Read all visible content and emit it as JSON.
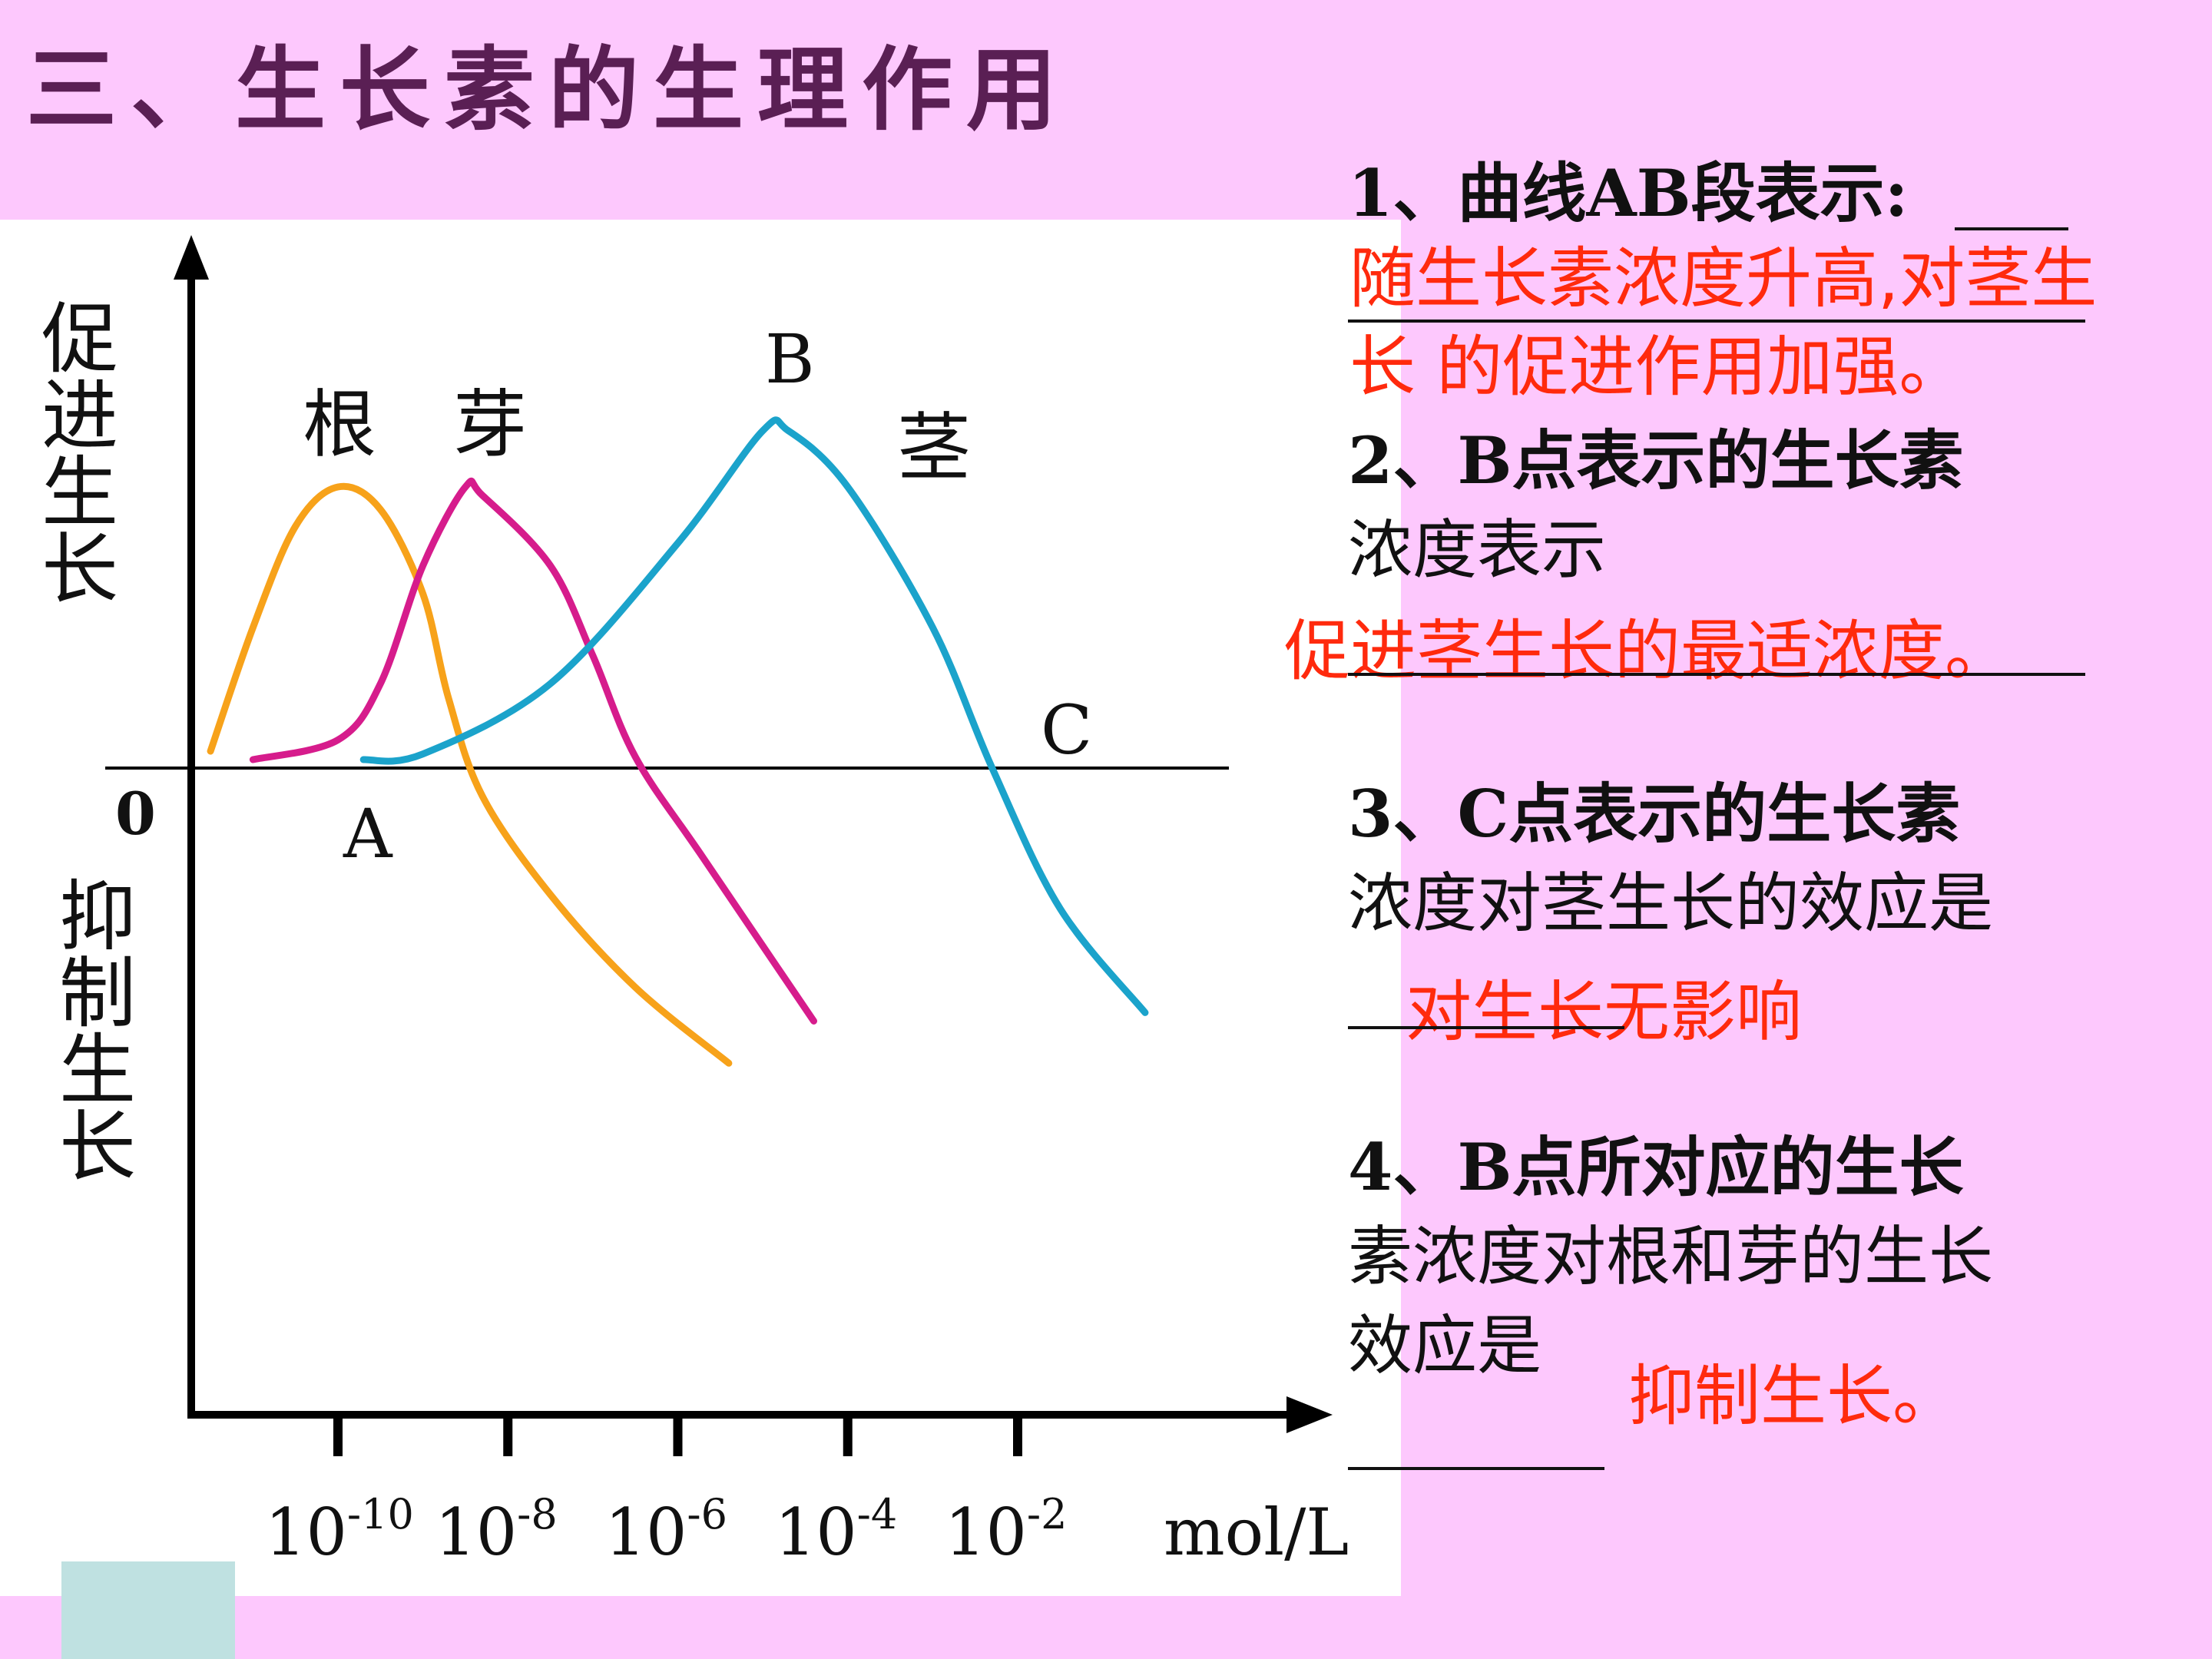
{
  "title": "三、生长素的生理作用",
  "chart_data": {
    "type": "line",
    "x_unit": "mol/L",
    "x_ticks": [
      "10",
      "10",
      "10",
      "10",
      "10"
    ],
    "x_tick_exponents": [
      "-10",
      "-8",
      "-6",
      "-4",
      "-2"
    ],
    "x_tick_values": [
      -10,
      -8,
      -6,
      -4,
      -2
    ],
    "y_label_positive": "促进生长",
    "y_label_negative": "抑制生长",
    "origin_label": "0",
    "point_labels": [
      "A",
      "B",
      "C"
    ],
    "series": [
      {
        "name": "根",
        "color": "#f7a21a",
        "x": [
          -11.5,
          -11.0,
          -10.5,
          -10.0,
          -9.5,
          -9.0,
          -8.7,
          -8.3,
          -7.5,
          -6.5,
          -5.4
        ],
        "y": [
          0.06,
          0.5,
          0.86,
          1.0,
          0.92,
          0.62,
          0.25,
          -0.1,
          -0.45,
          -0.78,
          -1.05
        ]
      },
      {
        "name": "芽",
        "color": "#d61c8c",
        "x": [
          -11.0,
          -10.0,
          -9.5,
          -9.0,
          -8.5,
          -8.3,
          -7.5,
          -7.0,
          -6.5,
          -5.7,
          -4.4
        ],
        "y": [
          0.03,
          0.1,
          0.3,
          0.72,
          1.0,
          0.97,
          0.72,
          0.4,
          0.04,
          -0.32,
          -0.9
        ]
      },
      {
        "name": "茎",
        "color": "#1ba3cb",
        "x": [
          -9.7,
          -9.0,
          -7.5,
          -6.0,
          -5.0,
          -4.7,
          -4.0,
          -3.0,
          -2.3,
          -1.5,
          -0.5
        ],
        "y": [
          0.03,
          0.05,
          0.3,
          0.8,
          1.2,
          1.2,
          1.0,
          0.5,
          0.0,
          -0.5,
          -0.87
        ]
      }
    ]
  },
  "questions": {
    "q1": {
      "text": "1、曲线AB段表示:",
      "answer_line1": "随生长素浓度升高,对茎生",
      "answer_line2": "长 的促进作用加强。"
    },
    "q2": {
      "line1": "2、B点表示的生长素",
      "line2": "浓度表示",
      "answer": "促进茎生长的最适浓度。"
    },
    "q3": {
      "line1": "3、C点表示的生长素",
      "line2": "浓度对茎生长的效应是",
      "answer": "对生长无影响"
    },
    "q4": {
      "line1": "4、B点所对应的生长",
      "line2": "素浓度对根和芽的生长",
      "line3": "效应是",
      "answer": "抑制生长。"
    }
  }
}
